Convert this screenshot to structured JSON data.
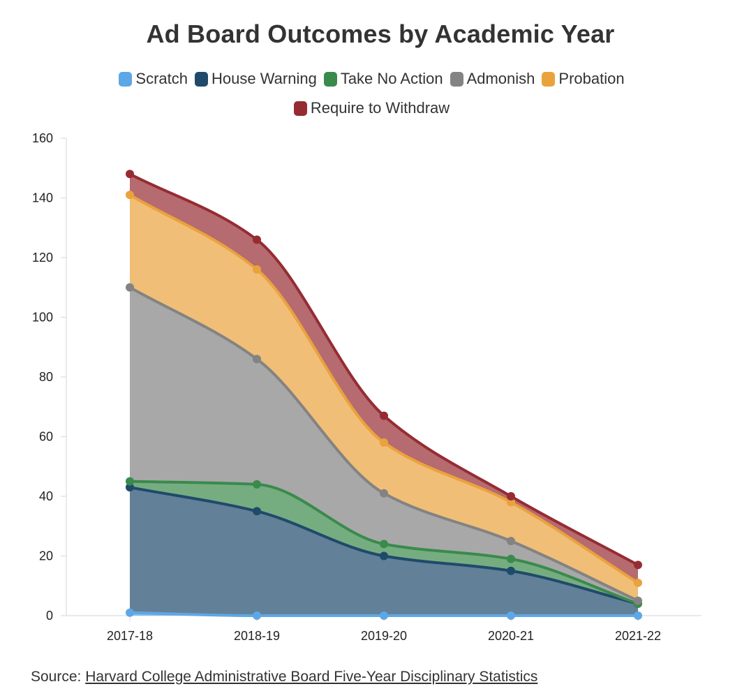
{
  "chart_data": {
    "type": "area",
    "stacked": true,
    "title": "Ad Board Outcomes by Academic Year",
    "categories": [
      "2017-18",
      "2018-19",
      "2019-20",
      "2020-21",
      "2021-22"
    ],
    "ylim": [
      0,
      160
    ],
    "yticks": [
      0,
      20,
      40,
      60,
      80,
      100,
      120,
      140,
      160
    ],
    "xlabel": "",
    "ylabel": "",
    "legend_position": "top-center",
    "series": [
      {
        "name": "Scratch",
        "color": "#5ea7e6",
        "values": [
          1,
          0,
          0,
          0,
          0
        ]
      },
      {
        "name": "House Warning",
        "color": "#1f4a6b",
        "values": [
          42,
          35,
          20,
          15,
          4
        ]
      },
      {
        "name": "Take No Action",
        "color": "#3a8a4c",
        "values": [
          2,
          9,
          4,
          4,
          0
        ]
      },
      {
        "name": "Admonish",
        "color": "#838383",
        "values": [
          65,
          42,
          17,
          6,
          1
        ]
      },
      {
        "name": "Probation",
        "color": "#eaa23c",
        "values": [
          31,
          30,
          17,
          13,
          6
        ]
      },
      {
        "name": "Require to Withdraw",
        "color": "#962c33",
        "values": [
          7,
          10,
          9,
          2,
          6
        ]
      }
    ]
  },
  "source": {
    "label": "Source: ",
    "link_text": "Harvard College Administrative Board Five-Year Disciplinary Statistics"
  }
}
